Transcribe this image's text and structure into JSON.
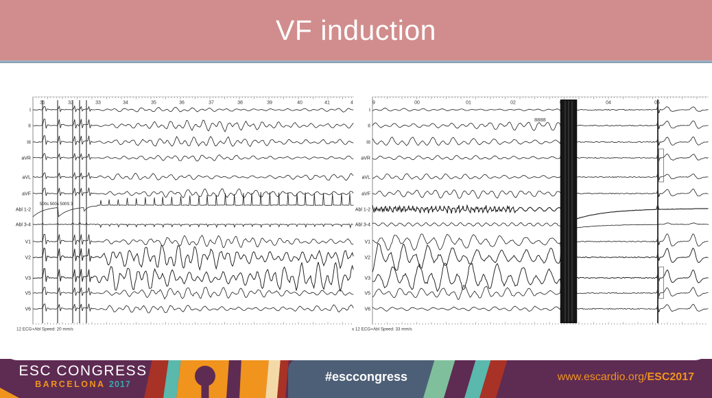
{
  "slide": {
    "title": "VF induction"
  },
  "theme": {
    "header_bg": "#d18d8d",
    "header_rule": "#7e98ad",
    "footer_bg": "#5e2b52",
    "accent_orange": "#f0941e",
    "accent_teal": "#3aa8ad",
    "accent_slate": "#4d5f77",
    "accent_green": "#7fbf9c",
    "accent_red": "#a93226",
    "accent_cream": "#f3d9a6",
    "trace_color": "#1a1a1a"
  },
  "left_ecg": {
    "ruler_labels": [
      "31",
      "32",
      "33",
      "34",
      "35",
      "36",
      "37",
      "38",
      "39",
      "40",
      "41",
      "4"
    ],
    "leads": [
      "I",
      "II",
      "III",
      "aVR",
      "aVL",
      "aVF",
      "Abl 1-2",
      "Abl 3-4",
      "V1",
      "V2",
      "V3",
      "V5",
      "V6"
    ],
    "pacing_label": "500s 500s 500S 3",
    "status_bar": "12 ECG+Abl   Speed: 20 mm/s"
  },
  "right_ecg": {
    "ruler_labels": [
      "9",
      "00",
      "01",
      "02",
      "0",
      "04",
      "05"
    ],
    "leads": [
      "I",
      "II",
      "III",
      "aVR",
      "aVL",
      "aVF",
      "Abl 1-2",
      "Abl 3-4",
      "V1",
      "V2",
      "V3",
      "V5",
      "V6"
    ],
    "annotation": "8888",
    "status_bar": "x 12 ECG+Abl   Speed: 33 mm/s"
  },
  "footer": {
    "congress": "ESC CONGRESS",
    "city": "BARCELONA",
    "year": "2017",
    "hashtag": "#esccongress",
    "url_prefix": "www.escardio.org/",
    "url_highlight": "ESC2017"
  }
}
